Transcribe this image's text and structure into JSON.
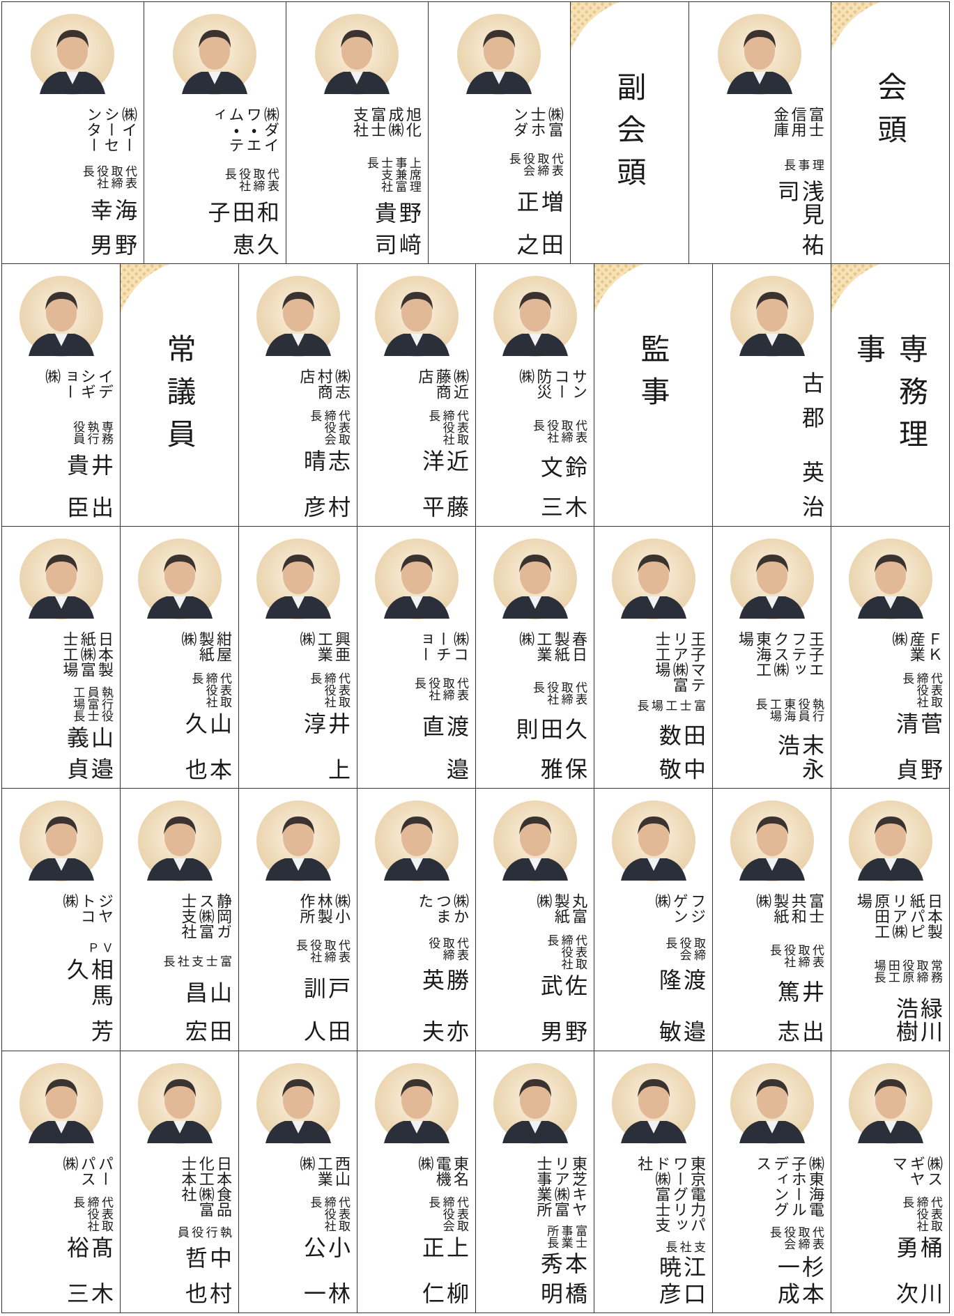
{
  "rows": [
    {
      "cells": [
        {
          "company": "㈱イーシーセンター",
          "title": "代表取締役社長",
          "name": "海野 幸男"
        },
        {
          "company": "㈱ダイワ・エム・ティ",
          "title": "代表取締役社長",
          "name": "和久田恵子"
        },
        {
          "company": "旭化成㈱富士支社",
          "title": "上席理事兼富士支社長",
          "name": "野﨑 貴司"
        },
        {
          "company": "㈱富士ホンダ",
          "title": "代表取締役会長",
          "name": "増田 正之"
        },
        {
          "label": "副会頭"
        },
        {
          "company": "富士信用金庫",
          "title": "理事長",
          "name": "浅見 祐司"
        },
        {
          "label": "会頭"
        }
      ]
    },
    {
      "cells": [
        {
          "company": "イデシギョー㈱",
          "title": "専務執行役員",
          "name": "井出 貴臣"
        },
        {
          "label": "常議員"
        },
        {
          "company": "㈱志村商店",
          "title": "代表取締役会長",
          "name": "志村 晴彦"
        },
        {
          "company": "㈱近藤商店",
          "title": "代表取締役社長",
          "name": "近藤 洋平"
        },
        {
          "company": "サンコー防災㈱",
          "title": "代表取締役社長",
          "name": "鈴木 文三"
        },
        {
          "label": "監事"
        },
        {
          "name": "古郡 英治"
        },
        {
          "label": "専務理事"
        }
      ]
    },
    {
      "cells": [
        {
          "company": "日本製紙㈱富士工場",
          "title": "執行役員富士工場長",
          "name": "山邉 義貞"
        },
        {
          "company": "紺屋製紙㈱",
          "title": "代表取締役社長",
          "name": "山本 久也"
        },
        {
          "company": "興亜工業㈱",
          "title": "代表取締役社長",
          "name": "井上 淳"
        },
        {
          "company": "㈱コーチョー",
          "title": "代表取締役社長",
          "name": "渡邉 直"
        },
        {
          "company": "春日製紙工業㈱",
          "title": "代表取締役社長",
          "name": "久保田雅則"
        },
        {
          "company": "王子マテリア㈱富士工場",
          "title": "富士工場長",
          "name": "田中 数敬"
        },
        {
          "company": "王子エフテックス㈱東海工場",
          "title": "執行役員東海工場長",
          "name": "末永 浩"
        },
        {
          "company": "ＦＫ産業㈱",
          "title": "代表取締役社長",
          "name": "菅野 清貞"
        }
      ]
    },
    {
      "cells": [
        {
          "company": "ジヤトコ㈱",
          "title": "ＶＰ",
          "name": "相馬 芳久"
        },
        {
          "company": "静岡ガス㈱富士支社",
          "title": "富士支社長",
          "name": "山田 昌宏"
        },
        {
          "company": "㈱小林製作所",
          "title": "代表取締役社長",
          "name": "戸田 訓人"
        },
        {
          "company": "㈱かつまた",
          "title": "代表取締役",
          "name": "勝亦 英夫"
        },
        {
          "company": "丸富製紙㈱",
          "title": "代表取締役社長",
          "name": "佐野 武男"
        },
        {
          "company": "フジゲン㈱",
          "title": "取締役会長",
          "name": "渡邉 隆敏"
        },
        {
          "company": "富士共和製紙㈱",
          "title": "代表取締役社長",
          "name": "井出 篤志"
        },
        {
          "company": "日本製紙パピリア㈱原田工場",
          "title": "常務取締役原田工場長",
          "name": "緑川 浩樹"
        }
      ]
    },
    {
      "cells": [
        {
          "company": "パーパス㈱",
          "title": "代表取締役社長",
          "name": "髙木 裕三"
        },
        {
          "company": "日本食品化工㈱富士本社",
          "title": "執行役員",
          "name": "中村 哲也"
        },
        {
          "company": "西山工業㈱",
          "title": "代表取締役社長",
          "name": "小林 公一"
        },
        {
          "company": "東名電機㈱",
          "title": "代表取締役会長",
          "name": "上柳 正仁"
        },
        {
          "company": "東芝キヤリア㈱富士事業所",
          "title": "富士事業所長",
          "name": "本橋 秀明"
        },
        {
          "company": "東京電力パワーグリッド㈱富士支社",
          "title": "支社長",
          "name": "江口 暁彦"
        },
        {
          "company": "㈱東海電子ホールディングス",
          "title": "代表取締役会長",
          "name": "杉本 一成"
        },
        {
          "company": "㈱スギヤマ",
          "title": "代表取締役社長",
          "name": "桶川 勇次"
        }
      ]
    }
  ]
}
